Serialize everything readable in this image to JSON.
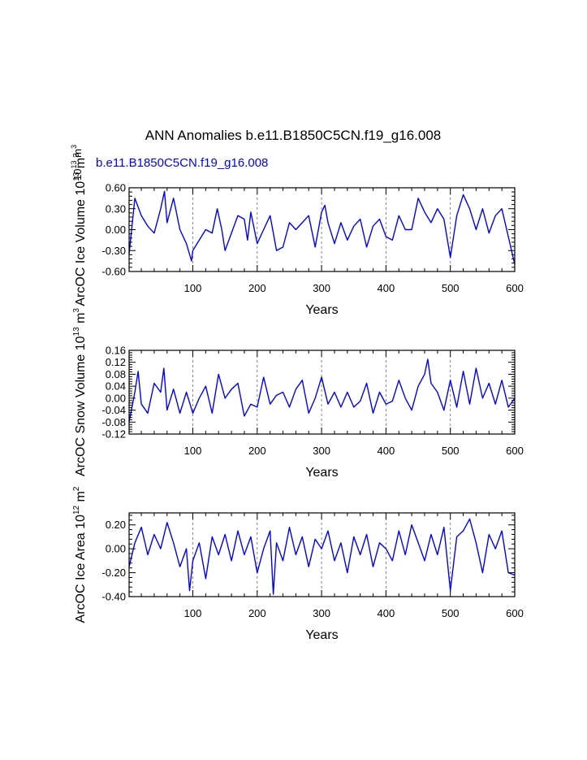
{
  "title": "ANN Anomalies b.e11.B1850C5CN.f19_g16.008",
  "case_label": "b.e11.B1850C5CN.f19_g16.008",
  "colors": {
    "series": "#0000ff",
    "axis": "#000000",
    "grid": "#666666"
  },
  "chart_data": [
    {
      "type": "line",
      "id": "ice-volume",
      "title": "",
      "xlabel": "Years",
      "ylabel": "ArcOC Ice Volume 10^13 m^3",
      "ylabel_parts": {
        "pre": "ArcOC Ice Volume 10",
        "exp": "13",
        "mid": " m",
        "exp2": "3"
      },
      "units_label": {
        "pre": "10",
        "exp": "13",
        "mid": " m",
        "exp2": "3"
      },
      "xlim": [
        1,
        600
      ],
      "ylim": [
        -0.6,
        0.6
      ],
      "xticks": [
        100,
        200,
        300,
        400,
        500,
        600
      ],
      "yticks": [
        -0.6,
        -0.3,
        0.0,
        0.3,
        0.6
      ],
      "yticklabels": [
        "-0.60",
        "-0.30",
        "0.00",
        "0.30",
        "0.60"
      ],
      "series": [
        {
          "name": "b.e11.B1850C5CN.f19_g16.008",
          "x": [
            1,
            10,
            20,
            30,
            40,
            50,
            56,
            60,
            70,
            80,
            90,
            98,
            100,
            110,
            120,
            130,
            138,
            145,
            150,
            160,
            170,
            180,
            185,
            190,
            200,
            210,
            220,
            230,
            240,
            250,
            260,
            270,
            280,
            290,
            300,
            305,
            310,
            320,
            330,
            340,
            350,
            360,
            370,
            380,
            390,
            400,
            410,
            420,
            430,
            440,
            450,
            460,
            470,
            480,
            490,
            500,
            510,
            520,
            530,
            540,
            550,
            560,
            570,
            580,
            590,
            600
          ],
          "y": [
            -0.35,
            0.45,
            0.2,
            0.05,
            -0.05,
            0.3,
            0.55,
            0.1,
            0.45,
            0.0,
            -0.2,
            -0.45,
            -0.3,
            -0.15,
            0.0,
            -0.05,
            0.3,
            0.0,
            -0.3,
            -0.05,
            0.2,
            0.15,
            -0.15,
            0.25,
            -0.2,
            0.0,
            0.2,
            -0.3,
            -0.25,
            0.1,
            0.0,
            0.1,
            0.2,
            -0.25,
            0.25,
            0.35,
            0.1,
            -0.2,
            0.1,
            -0.15,
            0.05,
            0.15,
            -0.25,
            0.05,
            0.15,
            -0.1,
            -0.15,
            0.2,
            0.0,
            0.0,
            0.45,
            0.25,
            0.1,
            0.3,
            0.15,
            -0.4,
            0.2,
            0.5,
            0.3,
            0.0,
            0.3,
            -0.05,
            0.2,
            0.3,
            -0.1,
            -0.5
          ]
        }
      ]
    },
    {
      "type": "line",
      "id": "snow-volume",
      "title": "",
      "xlabel": "Years",
      "ylabel": "ArcOC Snow Volume 10^13 m^3",
      "ylabel_parts": {
        "pre": "ArcOC Snow Volume 10",
        "exp": "13",
        "mid": " m",
        "exp2": "3"
      },
      "xlim": [
        1,
        600
      ],
      "ylim": [
        -0.12,
        0.16
      ],
      "xticks": [
        100,
        200,
        300,
        400,
        500,
        600
      ],
      "yticks": [
        -0.12,
        -0.08,
        -0.04,
        0.0,
        0.04,
        0.08,
        0.12,
        0.16
      ],
      "yticklabels": [
        "-0.12",
        "-0.08",
        "-0.04",
        "0.00",
        "0.04",
        "0.08",
        "0.12",
        "0.16"
      ],
      "series": [
        {
          "name": "b.e11.B1850C5CN.f19_g16.008",
          "x": [
            1,
            10,
            15,
            20,
            30,
            40,
            50,
            55,
            60,
            70,
            80,
            90,
            100,
            110,
            120,
            130,
            140,
            150,
            160,
            170,
            180,
            190,
            200,
            210,
            220,
            230,
            240,
            250,
            260,
            270,
            280,
            290,
            300,
            310,
            320,
            330,
            340,
            350,
            360,
            370,
            380,
            390,
            400,
            410,
            420,
            430,
            440,
            450,
            460,
            465,
            470,
            480,
            490,
            500,
            510,
            520,
            530,
            540,
            550,
            560,
            570,
            580,
            590,
            600
          ],
          "y": [
            -0.08,
            0.02,
            0.09,
            -0.02,
            -0.05,
            0.05,
            0.02,
            0.1,
            -0.04,
            0.03,
            -0.05,
            0.02,
            -0.05,
            0.0,
            0.04,
            -0.05,
            0.08,
            0.0,
            0.03,
            0.05,
            -0.06,
            -0.02,
            -0.03,
            0.07,
            -0.02,
            0.01,
            0.02,
            -0.03,
            0.03,
            0.06,
            -0.05,
            0.0,
            0.07,
            -0.02,
            0.02,
            -0.03,
            0.02,
            -0.03,
            -0.01,
            0.05,
            -0.05,
            0.02,
            -0.02,
            -0.01,
            0.06,
            0.0,
            -0.04,
            0.04,
            0.08,
            0.13,
            0.05,
            0.02,
            -0.04,
            0.06,
            -0.03,
            0.09,
            -0.02,
            0.1,
            0.0,
            0.05,
            -0.02,
            0.06,
            -0.03,
            0.0
          ]
        }
      ]
    },
    {
      "type": "line",
      "id": "ice-area",
      "title": "",
      "xlabel": "Years",
      "ylabel": "ArcOC Ice Area 10^12 m^2",
      "ylabel_parts": {
        "pre": "ArcOC Ice Area 10",
        "exp": "12",
        "mid": " m",
        "exp2": "2"
      },
      "xlim": [
        1,
        600
      ],
      "ylim": [
        -0.4,
        0.3
      ],
      "xticks": [
        100,
        200,
        300,
        400,
        500,
        600
      ],
      "yticks": [
        -0.4,
        -0.2,
        0.0,
        0.2
      ],
      "yticklabels": [
        "-0.40",
        "-0.20",
        "0.00",
        "0.20"
      ],
      "series": [
        {
          "name": "b.e11.B1850C5CN.f19_g16.008",
          "x": [
            1,
            10,
            20,
            30,
            40,
            50,
            60,
            70,
            80,
            90,
            95,
            100,
            110,
            120,
            130,
            140,
            150,
            160,
            170,
            180,
            190,
            200,
            210,
            220,
            225,
            230,
            240,
            250,
            260,
            270,
            280,
            290,
            300,
            310,
            320,
            330,
            340,
            350,
            360,
            370,
            380,
            390,
            400,
            410,
            420,
            430,
            440,
            450,
            460,
            470,
            480,
            490,
            500,
            510,
            520,
            530,
            540,
            550,
            560,
            570,
            580,
            590,
            600
          ],
          "y": [
            -0.15,
            0.05,
            0.18,
            -0.05,
            0.12,
            0.0,
            0.22,
            0.05,
            -0.15,
            0.0,
            -0.35,
            -0.1,
            0.05,
            -0.25,
            0.1,
            -0.05,
            0.12,
            -0.1,
            0.15,
            -0.05,
            0.1,
            -0.2,
            0.0,
            0.15,
            -0.38,
            0.05,
            -0.1,
            0.18,
            -0.05,
            0.1,
            -0.15,
            0.08,
            0.0,
            0.15,
            -0.1,
            0.05,
            -0.2,
            0.1,
            -0.05,
            0.12,
            -0.15,
            0.05,
            0.0,
            -0.1,
            0.15,
            -0.05,
            0.2,
            0.05,
            -0.1,
            0.12,
            -0.05,
            0.18,
            -0.35,
            0.1,
            0.15,
            0.25,
            0.05,
            -0.2,
            0.12,
            0.0,
            0.15,
            -0.2,
            -0.22
          ]
        }
      ]
    }
  ]
}
